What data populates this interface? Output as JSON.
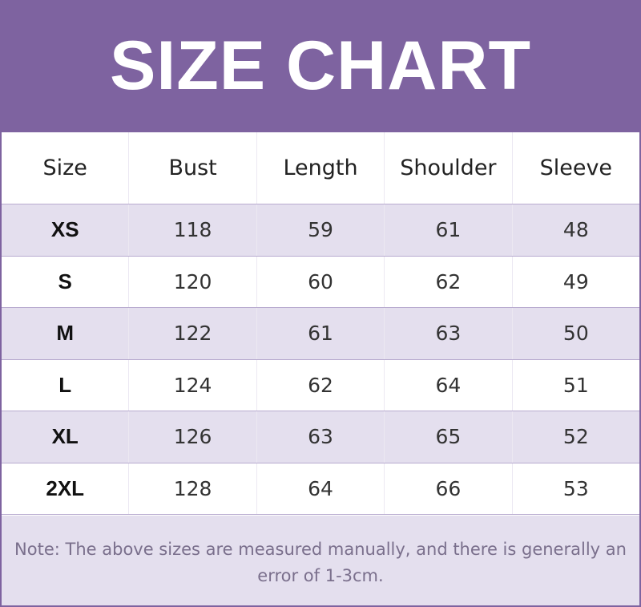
{
  "title": "SIZE CHART",
  "colors": {
    "header": "#7e63a0",
    "stripe": "#e4dfee"
  },
  "columns": [
    "Size",
    "Bust",
    "Length",
    "Shoulder",
    "Sleeve"
  ],
  "rows": [
    [
      "XS",
      "118",
      "59",
      "61",
      "48"
    ],
    [
      "S",
      "120",
      "60",
      "62",
      "49"
    ],
    [
      "M",
      "122",
      "61",
      "63",
      "50"
    ],
    [
      "L",
      "124",
      "62",
      "64",
      "51"
    ],
    [
      "XL",
      "126",
      "63",
      "65",
      "52"
    ],
    [
      "2XL",
      "128",
      "64",
      "66",
      "53"
    ]
  ],
  "note": "Note: The above sizes are measured manually, and there is generally an error of 1-3cm."
}
